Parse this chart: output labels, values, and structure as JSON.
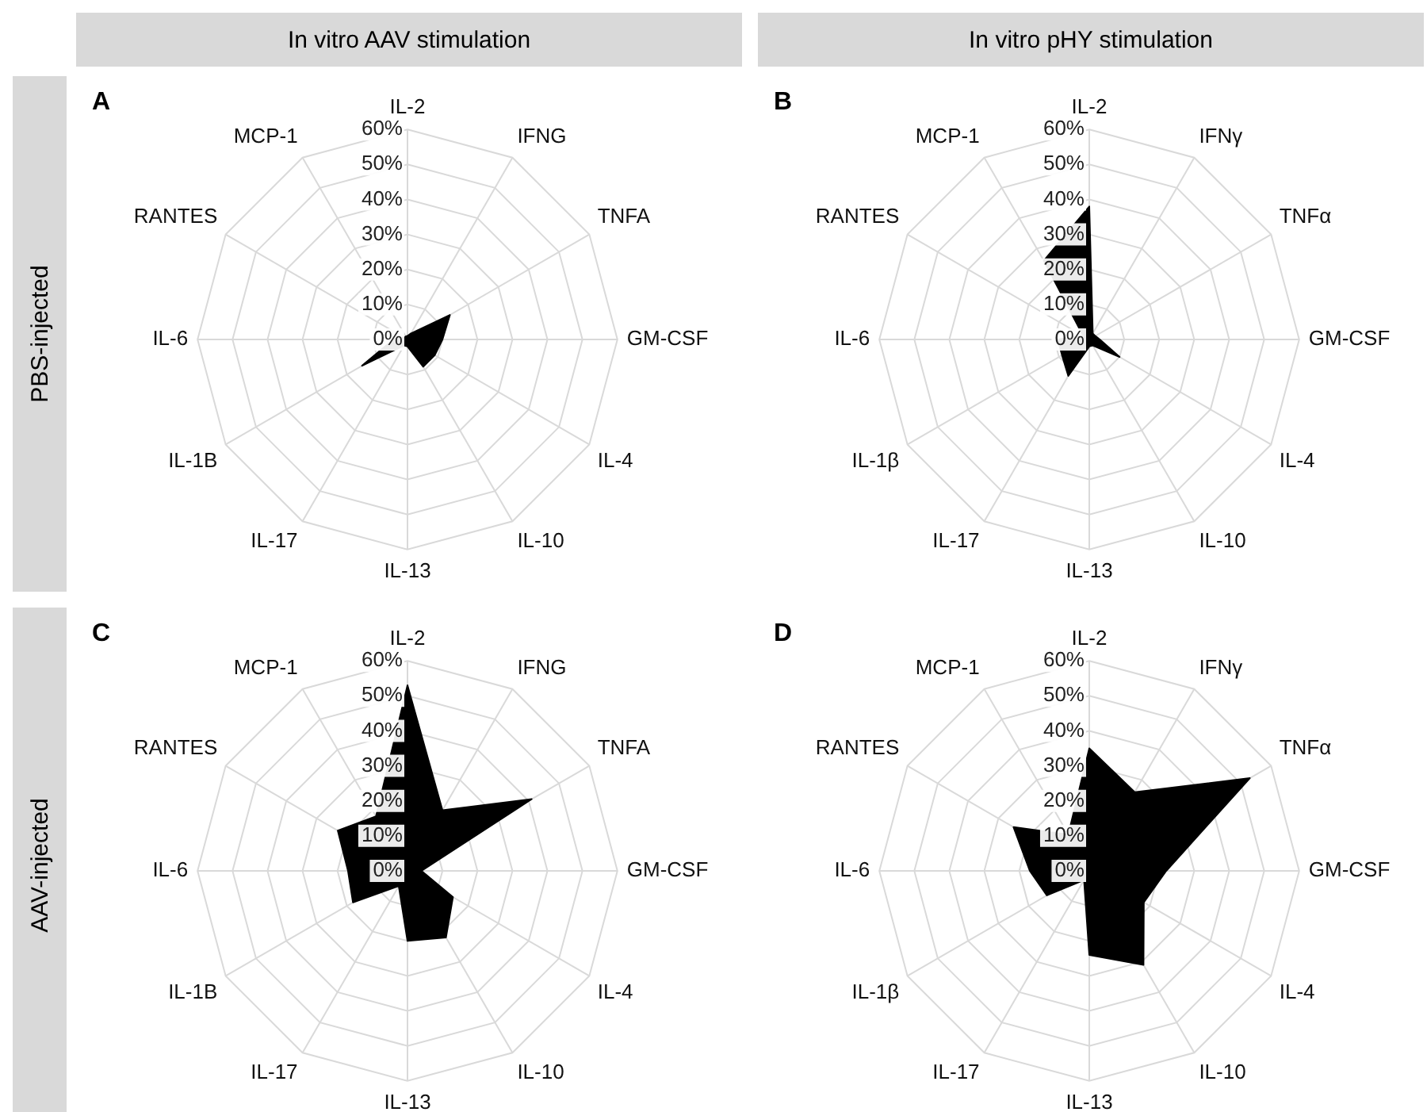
{
  "chart_data": [
    {
      "type": "radar",
      "title": "A",
      "annotations": [
        "In vitro AAV stimulation",
        "PBS-injected"
      ],
      "categories": [
        "IL-2",
        "IFNG",
        "TNFA",
        "GM-CSF",
        "IL-4",
        "IL-10",
        "IL-13",
        "IL-17",
        "IL-1B",
        "IL-6",
        "RANTES",
        "MCP-1"
      ],
      "series": [
        {
          "color": "#000000",
          "values": [
            1,
            2,
            14,
            10,
            9,
            9,
            2,
            2,
            15,
            4,
            1,
            1
          ]
        }
      ],
      "ylim": [
        0,
        60
      ],
      "yticks": [
        {
          "value": 0,
          "label": "0%"
        },
        {
          "value": 10,
          "label": "10%"
        },
        {
          "value": 20,
          "label": "20%"
        },
        {
          "value": 30,
          "label": "30%"
        },
        {
          "value": 40,
          "label": "40%"
        },
        {
          "value": 50,
          "label": "50%"
        },
        {
          "value": 60,
          "label": "60%"
        }
      ],
      "grid": true,
      "legend": false
    },
    {
      "type": "radar",
      "title": "B",
      "annotations": [
        "In vitro pHY stimulation"
      ],
      "categories": [
        "IL-2",
        "IFNγ",
        "TNFα",
        "GM-CSF",
        "IL-4",
        "IL-10",
        "IL-13",
        "IL-17",
        "IL-1β",
        "IL-6",
        "RANTES",
        "MCP-1"
      ],
      "series": [
        {
          "color": "#000000",
          "values": [
            38,
            2,
            2,
            3,
            10,
            2,
            2,
            12,
            9,
            9,
            2,
            26
          ]
        }
      ],
      "ylim": [
        0,
        60
      ],
      "yticks": [
        {
          "value": 0,
          "label": "0%"
        },
        {
          "value": 10,
          "label": "10%"
        },
        {
          "value": 20,
          "label": "20%"
        },
        {
          "value": 30,
          "label": "30%"
        },
        {
          "value": 40,
          "label": "40%"
        },
        {
          "value": 50,
          "label": "50%"
        },
        {
          "value": 60,
          "label": "60%"
        }
      ],
      "grid": true,
      "legend": false
    },
    {
      "type": "radar",
      "title": "C",
      "annotations": [
        "AAV-injected"
      ],
      "categories": [
        "IL-2",
        "IFNG",
        "TNFA",
        "GM-CSF",
        "IL-4",
        "IL-10",
        "IL-13",
        "IL-17",
        "IL-1B",
        "IL-6",
        "RANTES",
        "MCP-1"
      ],
      "series": [
        {
          "color": "#000000",
          "values": [
            53,
            20,
            41,
            4,
            15,
            22,
            20,
            5,
            18,
            17,
            23,
            18
          ]
        }
      ],
      "ylim": [
        0,
        60
      ],
      "yticks": [
        {
          "value": 0,
          "label": "0%"
        },
        {
          "value": 10,
          "label": "10%"
        },
        {
          "value": 20,
          "label": "20%"
        },
        {
          "value": 30,
          "label": "30%"
        },
        {
          "value": 40,
          "label": "40%"
        },
        {
          "value": 50,
          "label": "50%"
        },
        {
          "value": 60,
          "label": "60%"
        }
      ],
      "grid": true,
      "legend": false
    },
    {
      "type": "radar",
      "title": "D",
      "categories": [
        "IL-2",
        "IFNγ",
        "TNFα",
        "GM-CSF",
        "IL-4",
        "IL-10",
        "IL-13",
        "IL-17",
        "IL-1β",
        "IL-6",
        "RANTES",
        "MCP-1"
      ],
      "series": [
        {
          "color": "#000000",
          "values": [
            35,
            26,
            53,
            22,
            18,
            31,
            24,
            3,
            14,
            17,
            25,
            12
          ]
        }
      ],
      "ylim": [
        0,
        60
      ],
      "yticks": [
        {
          "value": 0,
          "label": "0%"
        },
        {
          "value": 10,
          "label": "10%"
        },
        {
          "value": 20,
          "label": "20%"
        },
        {
          "value": 30,
          "label": "30%"
        },
        {
          "value": 40,
          "label": "40%"
        },
        {
          "value": 50,
          "label": "50%"
        },
        {
          "value": 60,
          "label": "60%"
        }
      ],
      "grid": true,
      "legend": false
    }
  ]
}
